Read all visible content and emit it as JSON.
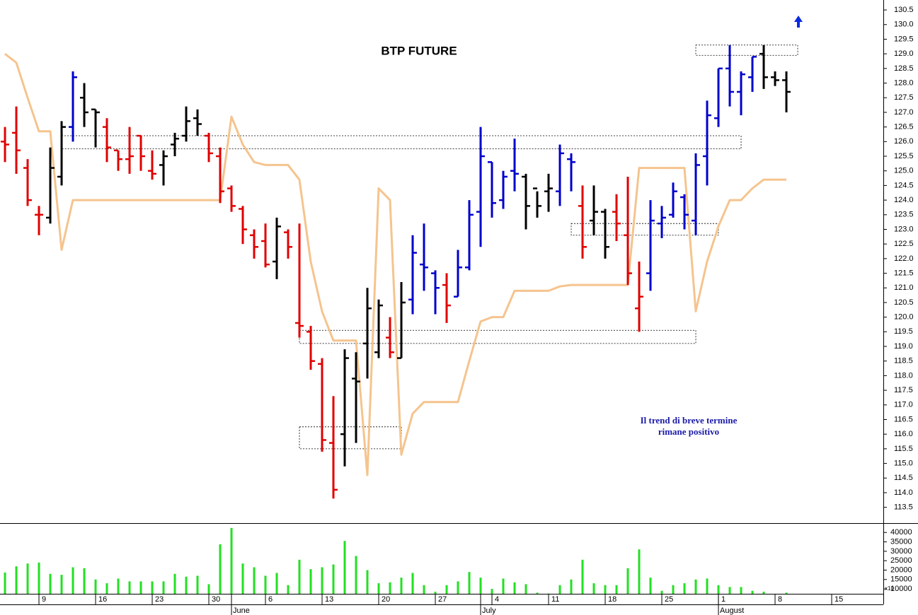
{
  "chart_data": [
    {
      "type": "ohlc",
      "title": "BTP FUTURE",
      "annotations": [
        "Il trend di breve termine",
        "rimane positivo"
      ],
      "open": [
        126.0,
        126.3,
        125.1,
        123.5,
        123.4,
        124.8,
        126.5,
        127.5,
        127.1,
        126.5,
        125.7,
        125.4,
        126.2,
        125.0,
        125.2,
        125.9,
        126.2,
        126.8,
        126.2,
        125.5,
        124.4,
        123.7,
        122.8,
        122.6,
        121.9,
        122.9,
        119.8,
        119.5,
        118.4,
        115.7,
        116.0,
        117.9,
        119.1,
        118.8,
        119.3,
        118.6,
        120.6,
        121.8,
        121.5,
        121.1,
        120.7,
        121.7,
        123.6,
        125.3,
        124.0,
        125.0,
        124.8,
        124.4,
        124.3,
        124.3,
        125.4,
        123.8,
        123.3,
        123.6,
        123.6,
        122.8,
        120.3,
        121.5,
        123.2,
        123.5,
        124.1,
        123.3,
        125.5,
        126.8,
        128.5,
        127.7,
        128.2,
        129.0,
        128.2,
        128.1
      ],
      "high": [
        126.5,
        127.2,
        125.4,
        123.8,
        125.8,
        126.7,
        128.4,
        128.0,
        127.1,
        126.8,
        125.7,
        126.5,
        126.2,
        125.7,
        125.7,
        126.3,
        127.2,
        127.1,
        126.3,
        125.8,
        124.5,
        123.8,
        123.0,
        123.2,
        123.4,
        123.0,
        123.2,
        119.7,
        118.6,
        117.3,
        118.9,
        118.8,
        121.0,
        120.6,
        120.0,
        121.2,
        122.8,
        123.2,
        121.6,
        121.5,
        122.3,
        124.0,
        126.5,
        125.3,
        125.0,
        126.1,
        124.9,
        124.3,
        124.9,
        125.9,
        125.6,
        124.5,
        124.5,
        123.7,
        124.2,
        124.8,
        121.9,
        124.0,
        123.8,
        124.6,
        124.2,
        125.6,
        127.4,
        128.5,
        129.3,
        128.4,
        128.9,
        129.3,
        128.4,
        128.4
      ],
      "low": [
        125.3,
        124.9,
        123.8,
        122.8,
        123.2,
        124.5,
        126.0,
        126.5,
        125.8,
        125.3,
        125.0,
        124.9,
        125.0,
        124.7,
        124.5,
        125.5,
        126.0,
        126.2,
        125.3,
        123.9,
        123.6,
        122.5,
        122.0,
        121.7,
        121.3,
        122.0,
        119.3,
        118.2,
        115.4,
        113.8,
        114.9,
        115.7,
        117.9,
        118.6,
        118.6,
        118.6,
        120.1,
        120.9,
        120.1,
        119.8,
        120.7,
        121.6,
        122.4,
        123.4,
        123.7,
        124.3,
        123.0,
        123.4,
        123.6,
        123.8,
        124.3,
        122.0,
        122.8,
        122.0,
        122.6,
        121.1,
        119.5,
        120.9,
        122.7,
        123.4,
        123.0,
        122.8,
        124.5,
        126.5,
        127.2,
        126.9,
        127.7,
        127.8,
        127.9,
        127.0
      ],
      "close": [
        125.9,
        125.7,
        124.0,
        123.5,
        125.1,
        126.5,
        128.2,
        127.0,
        127.0,
        125.8,
        125.4,
        125.5,
        125.5,
        124.9,
        125.5,
        126.1,
        126.7,
        126.6,
        125.6,
        124.3,
        123.8,
        123.0,
        122.4,
        121.8,
        123.1,
        122.4,
        119.7,
        118.5,
        115.8,
        114.1,
        118.6,
        117.8,
        120.3,
        120.4,
        118.8,
        120.5,
        122.2,
        121.7,
        121.0,
        120.4,
        121.7,
        123.5,
        125.5,
        123.9,
        124.8,
        124.9,
        123.8,
        123.8,
        124.4,
        125.6,
        125.3,
        122.4,
        123.6,
        122.4,
        123.2,
        121.5,
        120.7,
        123.3,
        123.4,
        124.3,
        123.5,
        125.2,
        126.9,
        128.5,
        127.7,
        128.3,
        128.9,
        128.2,
        128.1,
        127.7
      ],
      "bar_colors": [
        "#e00000",
        "#e00000",
        "#e00000",
        "#e00000",
        "#000000",
        "#000000",
        "#0000cc",
        "#000000",
        "#000000",
        "#e00000",
        "#e00000",
        "#e00000",
        "#e00000",
        "#e00000",
        "#000000",
        "#000000",
        "#000000",
        "#000000",
        "#e00000",
        "#e00000",
        "#e00000",
        "#e00000",
        "#e00000",
        "#e00000",
        "#000000",
        "#e00000",
        "#e00000",
        "#e00000",
        "#e00000",
        "#e00000",
        "#000000",
        "#000000",
        "#000000",
        "#000000",
        "#e00000",
        "#000000",
        "#0000cc",
        "#0000cc",
        "#0000cc",
        "#e00000",
        "#0000cc",
        "#0000cc",
        "#0000cc",
        "#0000cc",
        "#0000cc",
        "#0000cc",
        "#000000",
        "#000000",
        "#000000",
        "#0000cc",
        "#0000cc",
        "#e00000",
        "#000000",
        "#000000",
        "#e00000",
        "#e00000",
        "#e00000",
        "#0000cc",
        "#0000cc",
        "#0000cc",
        "#0000cc",
        "#0000cc",
        "#0000cc",
        "#0000cc",
        "#0000cc",
        "#0000cc",
        "#0000cc",
        "#000000",
        "#000000",
        "#000000"
      ],
      "line": {
        "color": "#f5c48e",
        "values": [
          129.0,
          128.7,
          127.5,
          126.35,
          126.35,
          122.3,
          124.0,
          124.0,
          124.0,
          124.0,
          124.0,
          124.0,
          124.0,
          124.0,
          124.0,
          124.0,
          124.0,
          124.0,
          124.0,
          124.0,
          126.85,
          125.9,
          125.3,
          125.2,
          125.2,
          125.2,
          124.7,
          121.9,
          120.2,
          119.2,
          119.2,
          119.2,
          114.6,
          124.4,
          124.0,
          115.3,
          116.7,
          117.1,
          117.1,
          117.1,
          117.1,
          118.5,
          119.85,
          120.0,
          120.0,
          120.9,
          120.9,
          120.9,
          120.9,
          121.05,
          121.1,
          121.1,
          121.1,
          121.1,
          121.1,
          121.1,
          125.1,
          125.1,
          125.1,
          125.1,
          125.1,
          120.2,
          121.9,
          123.1,
          124.0,
          124.0,
          124.4,
          124.7,
          124.7,
          124.7
        ]
      },
      "zones": [
        {
          "from": 5,
          "to": 65,
          "low": 125.75,
          "high": 126.2
        },
        {
          "from": 26,
          "to": 61,
          "low": 119.1,
          "high": 119.55
        },
        {
          "from": 26,
          "to": 35,
          "low": 115.5,
          "high": 116.25
        },
        {
          "from": 50,
          "to": 63,
          "low": 122.8,
          "high": 123.2
        },
        {
          "from": 61,
          "to": 70,
          "low": 128.95,
          "high": 129.3
        }
      ],
      "xlim": [
        -0.44,
        77.56
      ],
      "ylim": [
        112.96,
        130.84
      ],
      "yticks": [
        {
          "value": 113.5,
          "label": "113.5"
        },
        {
          "value": 114,
          "label": "114.0"
        },
        114.5,
        {
          "value": 115,
          "label": "115.0"
        },
        115.5,
        {
          "value": 116,
          "label": "116.0"
        },
        116.5,
        {
          "value": 117,
          "label": "117.0"
        },
        117.5,
        {
          "value": 118,
          "label": "118.0"
        },
        118.5,
        {
          "value": 119,
          "label": "119.0"
        },
        119.5,
        {
          "value": 120,
          "label": "120.0"
        },
        120.5,
        {
          "value": 121,
          "label": "121.0"
        },
        121.5,
        {
          "value": 122,
          "label": "122.0"
        },
        122.5,
        {
          "value": 123,
          "label": "123.0"
        },
        123.5,
        {
          "value": 124,
          "label": "124.0"
        },
        124.5,
        {
          "value": 125,
          "label": "125.0"
        },
        125.5,
        {
          "value": 126,
          "label": "126.0"
        },
        126.5,
        {
          "value": 127,
          "label": "127.0"
        },
        127.5,
        {
          "value": 128,
          "label": "128.0"
        },
        128.5,
        {
          "value": 129,
          "label": "129.0"
        },
        129.5,
        {
          "value": 130,
          "label": "130.0"
        },
        130.5
      ],
      "xticks": [
        {
          "value": 3,
          "label": "9"
        },
        {
          "value": 8,
          "label": "16"
        },
        {
          "value": 13,
          "label": "23"
        },
        {
          "value": 18,
          "label": "30"
        },
        {
          "value": 23,
          "label": "6"
        },
        {
          "value": 28,
          "label": "13"
        },
        {
          "value": 33,
          "label": "20"
        },
        {
          "value": 38,
          "label": "27"
        },
        {
          "value": 43,
          "label": "4"
        },
        {
          "value": 48,
          "label": "11"
        },
        {
          "value": 53,
          "label": "18"
        },
        {
          "value": 58,
          "label": "25"
        },
        {
          "value": 63,
          "label": "1"
        },
        {
          "value": 68,
          "label": "8"
        },
        {
          "value": 73,
          "label": "15"
        }
      ],
      "month_ticks": [
        {
          "value": 20,
          "label": "June"
        },
        {
          "value": 42,
          "label": "July"
        },
        {
          "value": 63,
          "label": "August"
        }
      ]
    },
    {
      "type": "bar",
      "color": "#22e022",
      "scale_label": "x10",
      "values": [
        18700,
        22000,
        23500,
        24000,
        18000,
        17500,
        21500,
        21000,
        15000,
        13000,
        15500,
        14000,
        14000,
        14000,
        14000,
        18000,
        16500,
        17000,
        12500,
        33700,
        42400,
        23500,
        21500,
        17000,
        18500,
        12000,
        25500,
        20500,
        21500,
        23000,
        35500,
        27500,
        20000,
        13000,
        13500,
        16000,
        18500,
        12000,
        8500,
        12000,
        14000,
        19000,
        16000,
        10000,
        15500,
        13500,
        12500,
        8000,
        7500,
        12000,
        15000,
        25500,
        13000,
        12000,
        12000,
        21000,
        31000,
        16000,
        9000,
        12000,
        13000,
        15000,
        15500,
        12000,
        11000,
        11000,
        9000,
        8500,
        7000,
        8000
      ],
      "ylim": [
        7400,
        44600
      ],
      "yticks": [
        10000,
        15000,
        20000,
        25000,
        30000,
        35000,
        40000
      ]
    }
  ]
}
